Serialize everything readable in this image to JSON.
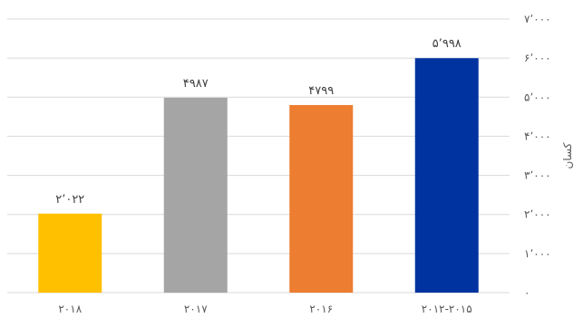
{
  "chart_data": {
    "type": "bar",
    "categories": [
      "۲۰۱۸",
      "۲۰۱۷",
      "۲۰۱۶",
      "۲۰۱۲-۲۰۱۵"
    ],
    "values": [
      2022,
      4987,
      4799,
      5998
    ],
    "value_labels": [
      "۲٬۰۲۲",
      "۴۹۸۷",
      "۴۷۹۹",
      "۵٬۹۹۸"
    ],
    "colors": [
      "#ffc000",
      "#a5a5a5",
      "#ed7d31",
      "#0033a0"
    ],
    "ylabel": "کسان",
    "ylim": [
      0,
      7000
    ],
    "yticks": [
      0,
      1000,
      2000,
      3000,
      4000,
      5000,
      6000,
      7000
    ],
    "ytick_labels": [
      "۰",
      "۱٬۰۰۰",
      "۲٬۰۰۰",
      "۳٬۰۰۰",
      "۴٬۰۰۰",
      "۵٬۰۰۰",
      "۶٬۰۰۰",
      "۷٬۰۰۰"
    ],
    "grid": true,
    "y_axis_side": "right",
    "legend": "none"
  }
}
